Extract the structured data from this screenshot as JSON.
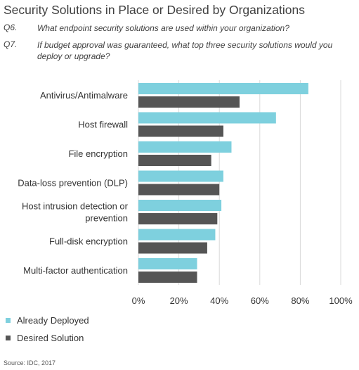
{
  "title": "Security Solutions in Place or Desired by Organizations",
  "questions": [
    {
      "num": "Q6.",
      "text": "What endpoint security solutions are used within your organization?"
    },
    {
      "num": "Q7.",
      "text": "If budget approval was guaranteed, what top three security solutions would you deploy or upgrade?"
    }
  ],
  "source": "Source: IDC, 2017",
  "colors": {
    "deployed": "#7ed0de",
    "desired": "#555555",
    "grid": "#d9d9d9"
  },
  "chart_data": {
    "type": "bar",
    "orientation": "horizontal",
    "categories": [
      [
        "Antivirus/Antimalware"
      ],
      [
        "Host firewall"
      ],
      [
        "File encryption"
      ],
      [
        "Data-loss prevention (DLP)"
      ],
      [
        "Host intrusion detection or",
        "prevention"
      ],
      [
        "Full-disk encryption"
      ],
      [
        "Multi-factor authentication"
      ]
    ],
    "series": [
      {
        "name": "Already Deployed",
        "values": [
          84,
          68,
          46,
          42,
          41,
          38,
          29
        ]
      },
      {
        "name": "Desired Solution",
        "values": [
          50,
          42,
          36,
          40,
          39,
          34,
          29
        ]
      }
    ],
    "xlim": [
      0,
      100
    ],
    "xticks": [
      "0%",
      "20%",
      "40%",
      "60%",
      "80%",
      "100%"
    ],
    "xtick_values": [
      0,
      20,
      40,
      60,
      80,
      100
    ],
    "grid": true,
    "legend_position": "bottom-left"
  }
}
